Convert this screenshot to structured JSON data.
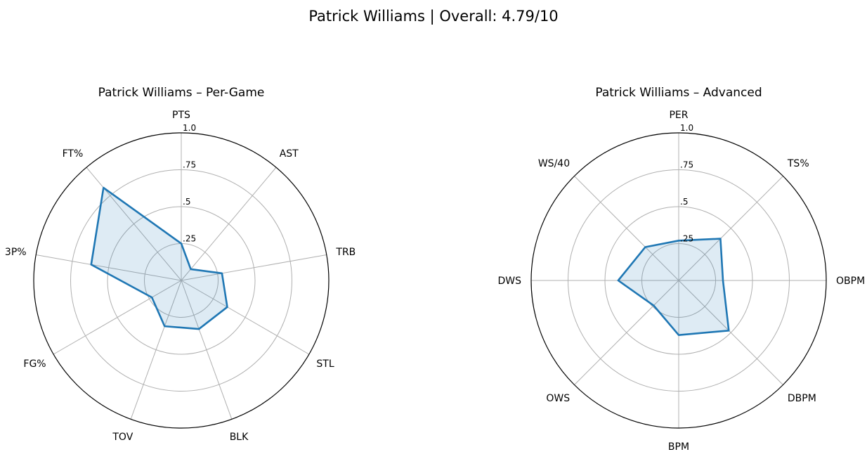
{
  "suptitle": "Patrick Williams | Overall: 4.79/10",
  "colors": {
    "series": "#1f77b4",
    "grid": "#b0b0b0",
    "frame": "#000000"
  },
  "chart_data": [
    {
      "type": "radar",
      "title": "Patrick Williams – Per-Game",
      "rlim": [
        0,
        1
      ],
      "rticks": [
        0.25,
        0.5,
        0.75,
        1.0
      ],
      "rtick_labels": [
        ".25",
        ".5",
        ".75",
        "1.0"
      ],
      "grid": true,
      "categories": [
        "PTS",
        "AST",
        "TRB",
        "STL",
        "BLK",
        "TOV",
        "FG%",
        "3P%",
        "FT%"
      ],
      "values": [
        0.25,
        0.1,
        0.28,
        0.36,
        0.35,
        0.33,
        0.23,
        0.62,
        0.82
      ]
    },
    {
      "type": "radar",
      "title": "Patrick Williams – Advanced",
      "rlim": [
        0,
        1
      ],
      "rticks": [
        0.25,
        0.5,
        0.75,
        1.0
      ],
      "rtick_labels": [
        ".25",
        ".5",
        ".75",
        "1.0"
      ],
      "grid": true,
      "categories": [
        "PER",
        "TS%",
        "OBPM",
        "DBPM",
        "BPM",
        "OWS",
        "DWS",
        "WS/40"
      ],
      "values": [
        0.27,
        0.4,
        0.3,
        0.48,
        0.37,
        0.24,
        0.41,
        0.32
      ]
    }
  ]
}
